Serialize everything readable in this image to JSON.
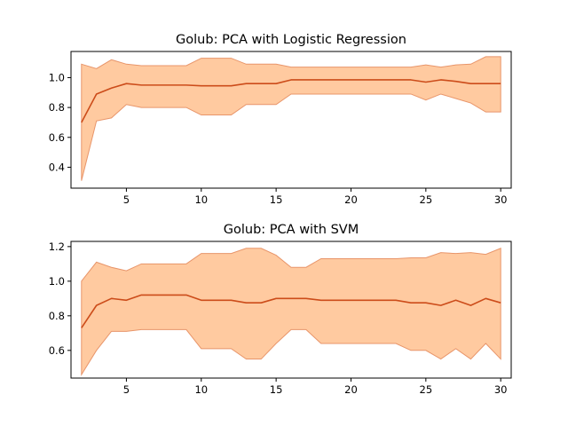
{
  "chart_data": [
    {
      "type": "line",
      "title": "Golub: PCA with Logistic Regression",
      "xlabel": "",
      "ylabel": "",
      "xlim": [
        1.3,
        30.7
      ],
      "ylim": [
        0.26,
        1.175
      ],
      "xticks": [
        5,
        10,
        15,
        20,
        25,
        30
      ],
      "yticks": [
        0.4,
        0.6,
        0.8,
        1.0
      ],
      "grid": false,
      "legend": "none",
      "line_color": "#cc4c1a",
      "band_fill": "#ffcaa0",
      "band_edge": "#e8956a",
      "x": [
        2,
        3,
        4,
        5,
        6,
        7,
        8,
        9,
        10,
        11,
        12,
        13,
        14,
        15,
        16,
        17,
        18,
        19,
        20,
        21,
        22,
        23,
        24,
        25,
        26,
        27,
        28,
        29,
        30
      ],
      "series": [
        {
          "mean": [
            0.7,
            0.89,
            0.93,
            0.96,
            0.95,
            0.95,
            0.95,
            0.95,
            0.945,
            0.945,
            0.945,
            0.96,
            0.96,
            0.96,
            0.985,
            0.985,
            0.985,
            0.985,
            0.985,
            0.985,
            0.985,
            0.985,
            0.985,
            0.97,
            0.985,
            0.975,
            0.96,
            0.96,
            0.96
          ],
          "upper": [
            1.09,
            1.06,
            1.12,
            1.09,
            1.08,
            1.08,
            1.08,
            1.08,
            1.13,
            1.13,
            1.13,
            1.09,
            1.09,
            1.09,
            1.07,
            1.07,
            1.07,
            1.07,
            1.07,
            1.07,
            1.07,
            1.07,
            1.07,
            1.085,
            1.07,
            1.085,
            1.09,
            1.14,
            1.14
          ],
          "lower": [
            0.31,
            0.71,
            0.73,
            0.82,
            0.8,
            0.8,
            0.8,
            0.8,
            0.75,
            0.75,
            0.75,
            0.82,
            0.82,
            0.82,
            0.89,
            0.89,
            0.89,
            0.89,
            0.89,
            0.89,
            0.89,
            0.89,
            0.89,
            0.85,
            0.89,
            0.86,
            0.83,
            0.77,
            0.77
          ]
        }
      ]
    },
    {
      "type": "line",
      "title": "Golub: PCA with SVM",
      "xlabel": "",
      "ylabel": "",
      "xlim": [
        1.3,
        30.7
      ],
      "ylim": [
        0.44,
        1.23
      ],
      "xticks": [
        5,
        10,
        15,
        20,
        25,
        30
      ],
      "yticks": [
        0.6,
        0.8,
        1.0,
        1.2
      ],
      "grid": false,
      "legend": "none",
      "line_color": "#cc4c1a",
      "band_fill": "#ffcaa0",
      "band_edge": "#e8956a",
      "x": [
        2,
        3,
        4,
        5,
        6,
        7,
        8,
        9,
        10,
        11,
        12,
        13,
        14,
        15,
        16,
        17,
        18,
        19,
        20,
        21,
        22,
        23,
        24,
        25,
        26,
        27,
        28,
        29,
        30
      ],
      "series": [
        {
          "mean": [
            0.73,
            0.86,
            0.9,
            0.89,
            0.92,
            0.92,
            0.92,
            0.92,
            0.89,
            0.89,
            0.89,
            0.875,
            0.875,
            0.9,
            0.9,
            0.9,
            0.89,
            0.89,
            0.89,
            0.89,
            0.89,
            0.89,
            0.875,
            0.875,
            0.86,
            0.89,
            0.86,
            0.9,
            0.875
          ],
          "upper": [
            1.0,
            1.11,
            1.08,
            1.06,
            1.1,
            1.1,
            1.1,
            1.1,
            1.16,
            1.16,
            1.16,
            1.19,
            1.19,
            1.15,
            1.08,
            1.08,
            1.13,
            1.13,
            1.13,
            1.13,
            1.13,
            1.13,
            1.135,
            1.135,
            1.165,
            1.16,
            1.165,
            1.155,
            1.19
          ],
          "lower": [
            0.46,
            0.6,
            0.71,
            0.71,
            0.72,
            0.72,
            0.72,
            0.72,
            0.61,
            0.61,
            0.61,
            0.55,
            0.55,
            0.64,
            0.72,
            0.72,
            0.64,
            0.64,
            0.64,
            0.64,
            0.64,
            0.64,
            0.6,
            0.6,
            0.55,
            0.61,
            0.55,
            0.64,
            0.55
          ]
        }
      ]
    }
  ]
}
